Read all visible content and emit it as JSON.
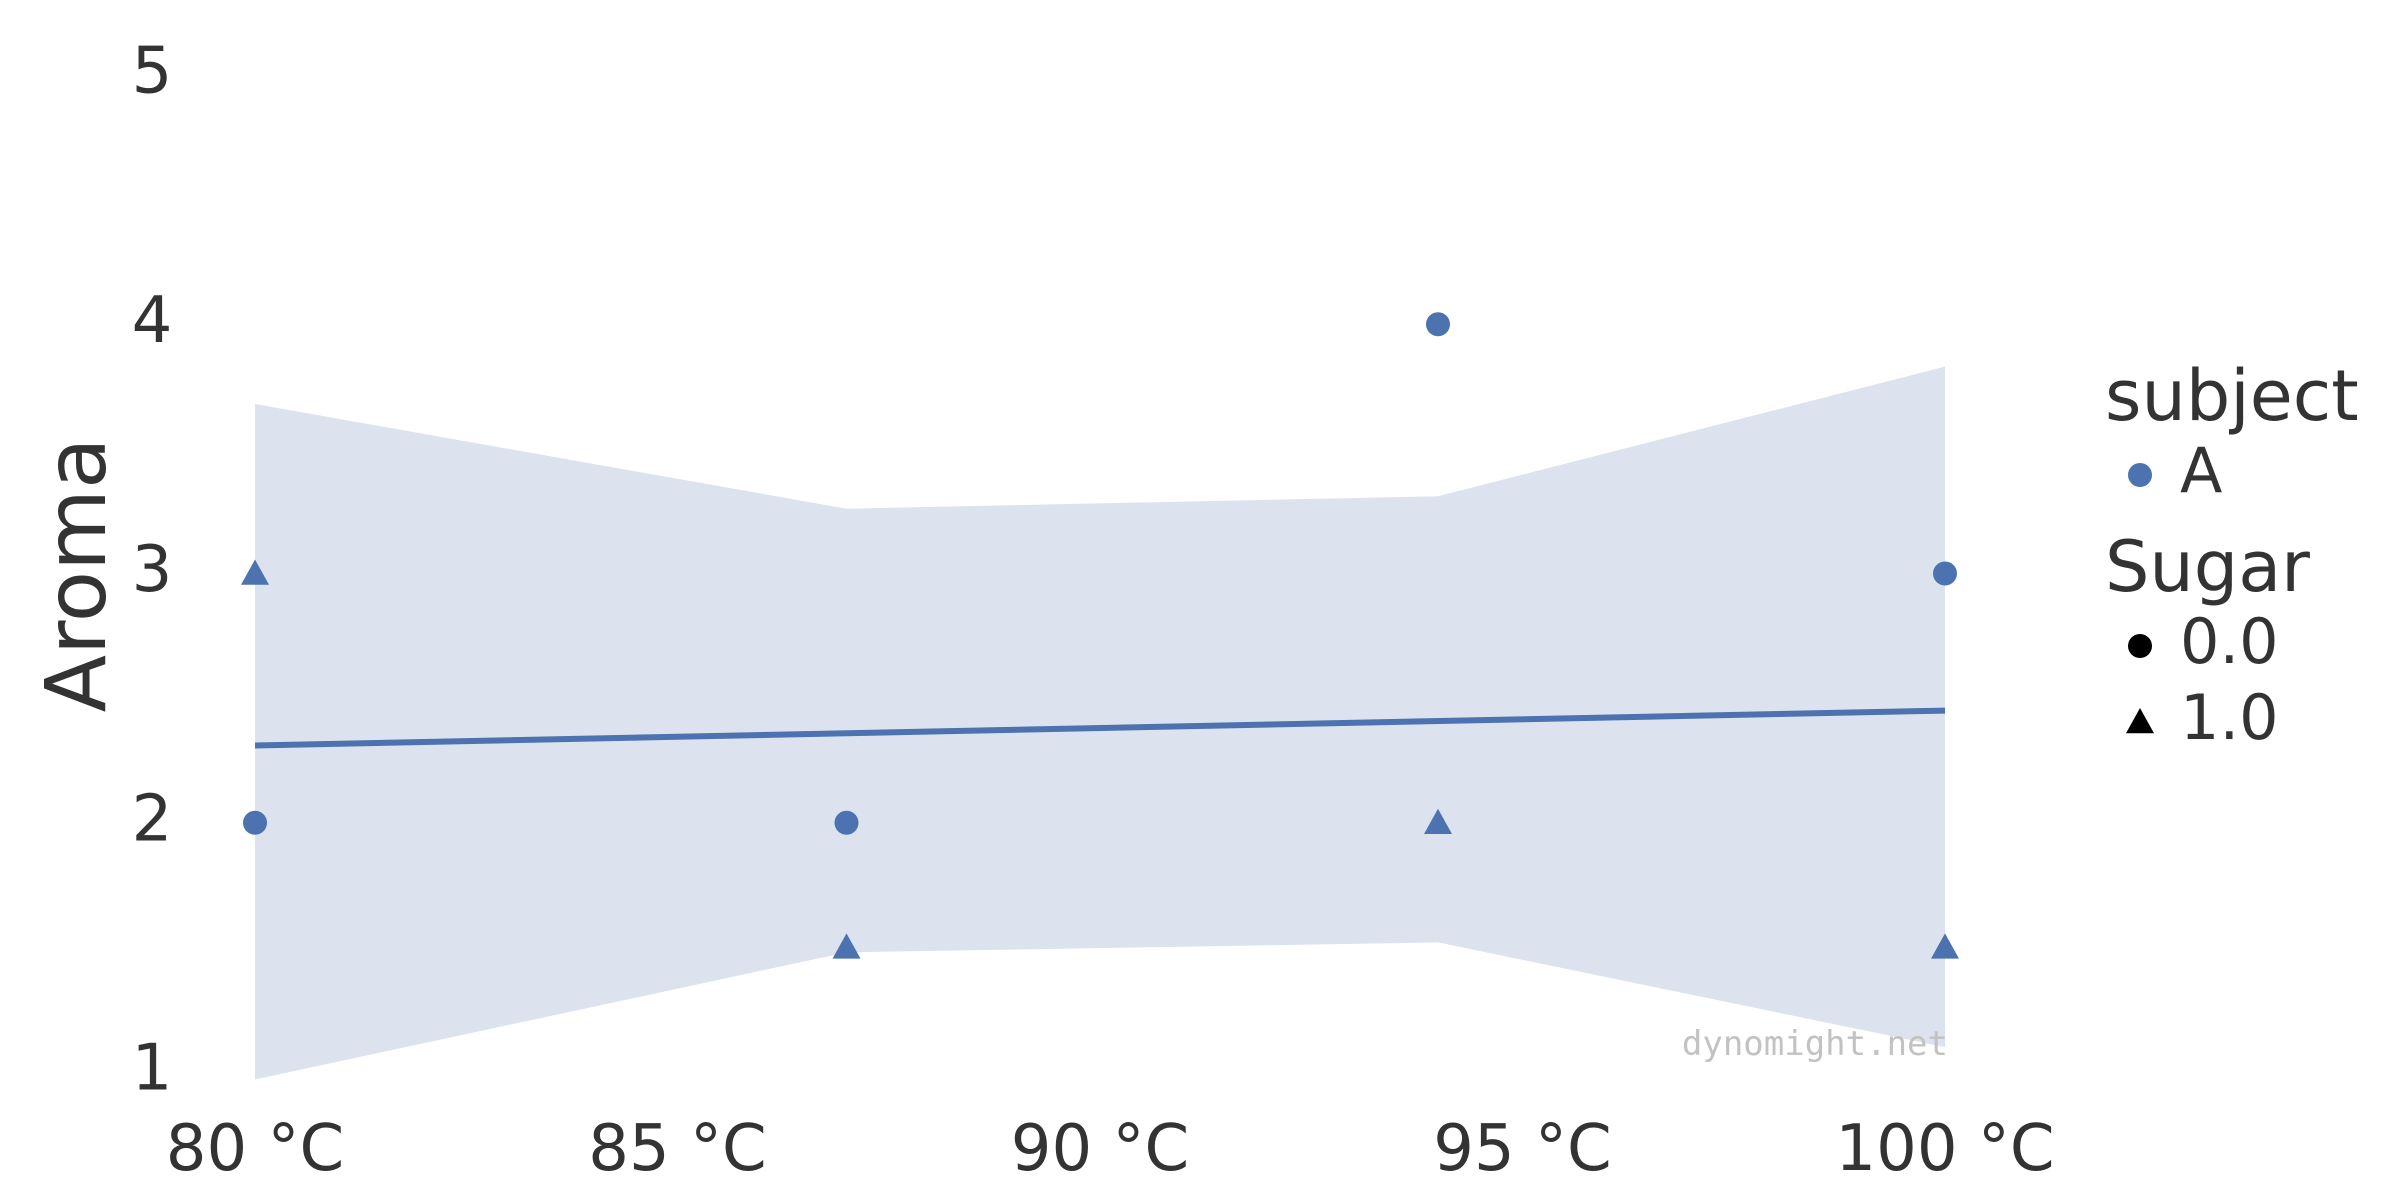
{
  "chart_data": {
    "type": "scatter",
    "title": "",
    "xlabel": "",
    "ylabel": "Aroma",
    "xlim": [
      79,
      101
    ],
    "ylim": [
      1,
      5
    ],
    "x_ticks": [
      {
        "value": 80,
        "label": "80 °C"
      },
      {
        "value": 85,
        "label": "85 °C"
      },
      {
        "value": 90,
        "label": "90 °C"
      },
      {
        "value": 95,
        "label": "95 °C"
      },
      {
        "value": 100,
        "label": "100 °C"
      }
    ],
    "y_ticks": [
      {
        "value": 1,
        "label": "1"
      },
      {
        "value": 2,
        "label": "2"
      },
      {
        "value": 3,
        "label": "3"
      },
      {
        "value": 4,
        "label": "4"
      },
      {
        "value": 5,
        "label": "5"
      }
    ],
    "grid": false,
    "series": [
      {
        "name": "A",
        "color": "#4c72b0",
        "points": [
          {
            "x": 80,
            "y": 2,
            "sugar": 0.0
          },
          {
            "x": 80,
            "y": 3,
            "sugar": 1.0
          },
          {
            "x": 87,
            "y": 2,
            "sugar": 0.0
          },
          {
            "x": 87,
            "y": 1.5,
            "sugar": 1.0
          },
          {
            "x": 94,
            "y": 4,
            "sugar": 0.0
          },
          {
            "x": 94,
            "y": 2,
            "sugar": 1.0
          },
          {
            "x": 100,
            "y": 3,
            "sugar": 0.0
          },
          {
            "x": 100,
            "y": 1.5,
            "sugar": 1.0
          }
        ]
      }
    ],
    "regression": {
      "color": "#4c72b0",
      "band_color": "#dce3ee",
      "line": [
        {
          "x": 80,
          "y": 2.31
        },
        {
          "x": 100,
          "y": 2.45
        }
      ],
      "band_upper": [
        {
          "x": 80,
          "y": 3.68
        },
        {
          "x": 87,
          "y": 3.26
        },
        {
          "x": 94,
          "y": 3.31
        },
        {
          "x": 100,
          "y": 3.83
        }
      ],
      "band_lower": [
        {
          "x": 80,
          "y": 0.97
        },
        {
          "x": 87,
          "y": 1.48
        },
        {
          "x": 94,
          "y": 1.52
        },
        {
          "x": 100,
          "y": 1.1
        }
      ]
    },
    "legend": {
      "placement": "right",
      "groups": [
        {
          "title": "subject",
          "items": [
            {
              "label": "A",
              "marker": "circle",
              "color": "#4c72b0"
            }
          ]
        },
        {
          "title": "Sugar",
          "items": [
            {
              "label": "0.0",
              "marker": "circle",
              "color": "#000000"
            },
            {
              "label": "1.0",
              "marker": "triangle",
              "color": "#000000"
            }
          ]
        }
      ]
    },
    "watermark": "dynomight.net"
  }
}
